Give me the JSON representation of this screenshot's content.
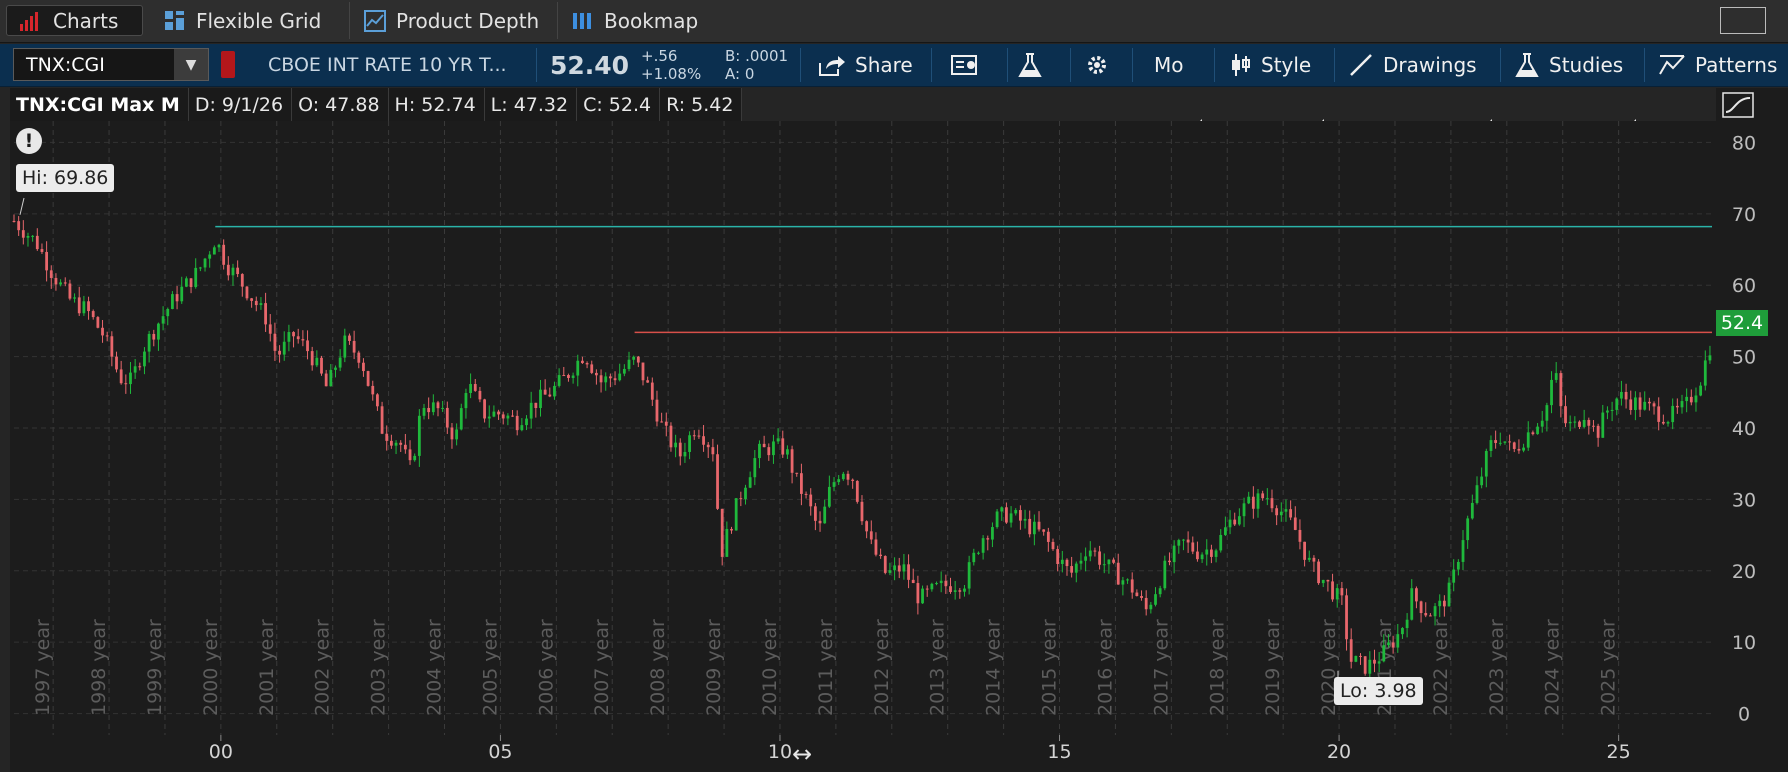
{
  "tabs": [
    {
      "label": "Charts",
      "icon": "bar-chart-icon"
    },
    {
      "label": "Flexible Grid",
      "icon": "grid-icon"
    },
    {
      "label": "Product Depth",
      "icon": "depth-chart-icon"
    },
    {
      "label": "Bookmap",
      "icon": "bookmap-icon"
    }
  ],
  "toolbar": {
    "symbol": "TNX:CGI",
    "description": "CBOE INT RATE 10 YR T...",
    "last": "52.40",
    "change": "+.56",
    "change_pct": "+1.08%",
    "bid": "B: .0001",
    "ask": "A: 0",
    "share_label": "Share",
    "period_label": "Mo",
    "style_label": "Style",
    "drawings_label": "Drawings",
    "studies_label": "Studies",
    "patterns_label": "Patterns"
  },
  "infobar": {
    "title": "TNX:CGI Max M",
    "date": "D: 9/1/26",
    "open": "O: 47.88",
    "high": "H: 52.74",
    "low": "L: 47.32",
    "close": "C: 52.4",
    "range": "R: 5.42"
  },
  "chart_data": {
    "type": "candlestick",
    "title": "TNX:CGI Max M",
    "x_range": [
      1996.3,
      2026.67
    ],
    "ylim": [
      -3,
      83
    ],
    "y_ticks": [
      0,
      10,
      20,
      30,
      40,
      50,
      60,
      70,
      80
    ],
    "x_tick_labels": [
      {
        "year": 2000,
        "label": "00"
      },
      {
        "year": 2005,
        "label": "05"
      },
      {
        "year": 2010,
        "label": "10"
      },
      {
        "year": 2015,
        "label": "15"
      },
      {
        "year": 2020,
        "label": "20"
      },
      {
        "year": 2025,
        "label": "25"
      }
    ],
    "year_separators": [
      1997,
      1998,
      1999,
      2000,
      2001,
      2002,
      2003,
      2004,
      2005,
      2006,
      2007,
      2008,
      2009,
      2010,
      2011,
      2012,
      2013,
      2014,
      2015,
      2016,
      2017,
      2018,
      2019,
      2020,
      2021,
      2022,
      2023,
      2024,
      2025
    ],
    "year_labels": [
      "1997 year",
      "1998 year",
      "1999 year",
      "2000 year",
      "2001 year",
      "2002 year",
      "2003 year",
      "2004 year",
      "2005 year",
      "2006 year",
      "2007 year",
      "2008 year",
      "2009 year",
      "2010 year",
      "2011 year",
      "2012 year",
      "2013 year",
      "2014 year",
      "2015 year",
      "2016 year",
      "2017 year",
      "2018 year",
      "2019 year",
      "2020 year",
      "2021 year",
      "2022 year",
      "2023 year",
      "2024 year",
      "2025 year"
    ],
    "price_path": [
      [
        1996.3,
        69.0
      ],
      [
        1996.7,
        66.0
      ],
      [
        1997.0,
        61.5
      ],
      [
        1997.3,
        58.0
      ],
      [
        1997.6,
        56.5
      ],
      [
        1997.9,
        53.0
      ],
      [
        1998.2,
        47.0
      ],
      [
        1998.4,
        46.5
      ],
      [
        1998.6,
        51.0
      ],
      [
        1998.9,
        55.0
      ],
      [
        1999.2,
        58.5
      ],
      [
        1999.6,
        62.0
      ],
      [
        1999.9,
        66.5
      ],
      [
        2000.1,
        63.0
      ],
      [
        2000.4,
        60.0
      ],
      [
        2000.8,
        55.5
      ],
      [
        2001.0,
        50.0
      ],
      [
        2001.3,
        53.0
      ],
      [
        2001.6,
        50.5
      ],
      [
        2001.9,
        45.5
      ],
      [
        2002.2,
        52.0
      ],
      [
        2002.5,
        50.0
      ],
      [
        2002.7,
        44.5
      ],
      [
        2002.9,
        39.5
      ],
      [
        2003.2,
        38.0
      ],
      [
        2003.4,
        34.0
      ],
      [
        2003.6,
        43.5
      ],
      [
        2003.9,
        42.5
      ],
      [
        2004.2,
        38.5
      ],
      [
        2004.4,
        46.5
      ],
      [
        2004.7,
        42.0
      ],
      [
        2005.0,
        42.0
      ],
      [
        2005.3,
        41.0
      ],
      [
        2005.6,
        43.5
      ],
      [
        2005.9,
        45.0
      ],
      [
        2006.2,
        47.5
      ],
      [
        2006.5,
        50.5
      ],
      [
        2006.8,
        46.5
      ],
      [
        2007.1,
        47.5
      ],
      [
        2007.4,
        49.5
      ],
      [
        2007.6,
        46.5
      ],
      [
        2007.9,
        40.0
      ],
      [
        2008.2,
        36.0
      ],
      [
        2008.5,
        40.5
      ],
      [
        2008.8,
        37.0
      ],
      [
        2008.95,
        22.5
      ],
      [
        2009.2,
        28.5
      ],
      [
        2009.4,
        33.0
      ],
      [
        2009.6,
        36.5
      ],
      [
        2009.9,
        37.5
      ],
      [
        2010.1,
        37.0
      ],
      [
        2010.3,
        32.5
      ],
      [
        2010.5,
        29.5
      ],
      [
        2010.7,
        25.5
      ],
      [
        2010.9,
        31.5
      ],
      [
        2011.1,
        34.5
      ],
      [
        2011.3,
        33.0
      ],
      [
        2011.6,
        24.0
      ],
      [
        2011.9,
        19.5
      ],
      [
        2012.2,
        20.5
      ],
      [
        2012.5,
        16.0
      ],
      [
        2012.8,
        17.5
      ],
      [
        2013.0,
        18.0
      ],
      [
        2013.3,
        18.5
      ],
      [
        2013.6,
        24.5
      ],
      [
        2013.9,
        27.5
      ],
      [
        2014.1,
        28.0
      ],
      [
        2014.4,
        26.5
      ],
      [
        2014.7,
        25.0
      ],
      [
        2015.0,
        21.5
      ],
      [
        2015.2,
        19.5
      ],
      [
        2015.5,
        23.5
      ],
      [
        2015.8,
        21.0
      ],
      [
        2016.1,
        19.0
      ],
      [
        2016.3,
        17.5
      ],
      [
        2016.55,
        14.5
      ],
      [
        2016.9,
        20.5
      ],
      [
        2017.2,
        24.0
      ],
      [
        2017.5,
        22.5
      ],
      [
        2017.8,
        23.5
      ],
      [
        2018.1,
        27.5
      ],
      [
        2018.4,
        29.5
      ],
      [
        2018.7,
        30.5
      ],
      [
        2018.95,
        28.5
      ],
      [
        2019.2,
        26.0
      ],
      [
        2019.5,
        20.5
      ],
      [
        2019.8,
        18.0
      ],
      [
        2020.05,
        15.5
      ],
      [
        2020.2,
        7.5
      ],
      [
        2020.5,
        6.5
      ],
      [
        2020.8,
        8.5
      ],
      [
        2021.1,
        11.5
      ],
      [
        2021.3,
        16.5
      ],
      [
        2021.6,
        14.0
      ],
      [
        2021.8,
        15.0
      ],
      [
        2022.0,
        17.5
      ],
      [
        2022.2,
        24.5
      ],
      [
        2022.4,
        29.5
      ],
      [
        2022.7,
        37.5
      ],
      [
        2022.9,
        39.0
      ],
      [
        2023.1,
        36.5
      ],
      [
        2023.4,
        39.5
      ],
      [
        2023.7,
        42.5
      ],
      [
        2023.85,
        48.5
      ],
      [
        2024.0,
        41.0
      ],
      [
        2024.2,
        40.0
      ],
      [
        2024.4,
        42.5
      ],
      [
        2024.6,
        39.0
      ],
      [
        2024.8,
        42.5
      ],
      [
        2025.0,
        44.5
      ],
      [
        2025.3,
        43.5
      ],
      [
        2025.6,
        42.5
      ],
      [
        2025.9,
        41.5
      ],
      [
        2026.2,
        43.0
      ],
      [
        2026.45,
        46.5
      ],
      [
        2026.67,
        52.4
      ]
    ],
    "resistance_lines": [
      {
        "from": 1999.9,
        "to": 2026.67,
        "value": 68.2,
        "color": "#2ab3a8"
      },
      {
        "from": 2007.4,
        "to": 2026.67,
        "value": 53.4,
        "color": "#d8504a"
      }
    ],
    "high_label": "Hi: 69.86",
    "low_label": "Lo: 3.98",
    "last_value": "52.4",
    "up_color": "#1fb93c",
    "down_color": "#e8676c",
    "grid": true
  }
}
